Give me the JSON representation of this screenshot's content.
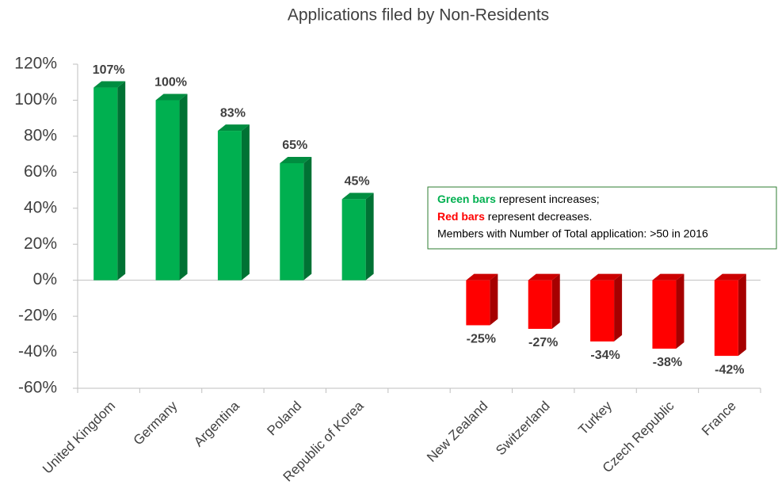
{
  "chart_data": {
    "type": "bar",
    "title": "Applications filed by Non-Residents",
    "categories": [
      "United Kingdom",
      "Germany",
      "Argentina",
      "Poland",
      "Republic of Korea",
      null,
      "New Zealand",
      "Switzerland",
      "Turkey",
      "Czech Republic",
      "France"
    ],
    "values": [
      107,
      100,
      83,
      65,
      45,
      null,
      -25,
      -27,
      -34,
      -38,
      -42
    ],
    "value_labels": [
      "107%",
      "100%",
      "83%",
      "65%",
      "45%",
      null,
      "-25%",
      "-27%",
      "-34%",
      "-38%",
      "-42%"
    ],
    "color_increase": "#00b050",
    "color_decrease": "#ff0000",
    "ylim": [
      -60,
      120
    ],
    "yticks": [
      {
        "value": -60,
        "label": "-60%"
      },
      {
        "value": -40,
        "label": "-40%"
      },
      {
        "value": -20,
        "label": "-20%"
      },
      {
        "value": 0,
        "label": "0%"
      },
      {
        "value": 20,
        "label": "20%"
      },
      {
        "value": 40,
        "label": "40%"
      },
      {
        "value": 60,
        "label": "60%"
      },
      {
        "value": 80,
        "label": "80%"
      },
      {
        "value": 100,
        "label": "100%"
      },
      {
        "value": 120,
        "label": "120%"
      }
    ],
    "annotations": {
      "increase_key": "Green bars",
      "increase_text": " represent increases;",
      "decrease_key": "Red bars",
      "decrease_text": " represent decreases.",
      "note": "Members with Number of Total application: >50 in 2016"
    }
  }
}
